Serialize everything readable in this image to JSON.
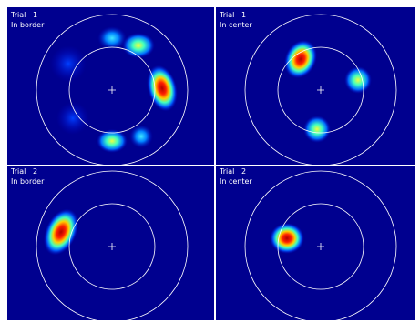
{
  "panels": [
    {
      "label": "Trial",
      "trial": 1,
      "condition": "In border"
    },
    {
      "label": "Trial",
      "trial": 1,
      "condition": "In center"
    },
    {
      "label": "Trial",
      "trial": 2,
      "condition": "In border"
    },
    {
      "label": "Trial",
      "trial": 2,
      "condition": "In center"
    }
  ]
}
